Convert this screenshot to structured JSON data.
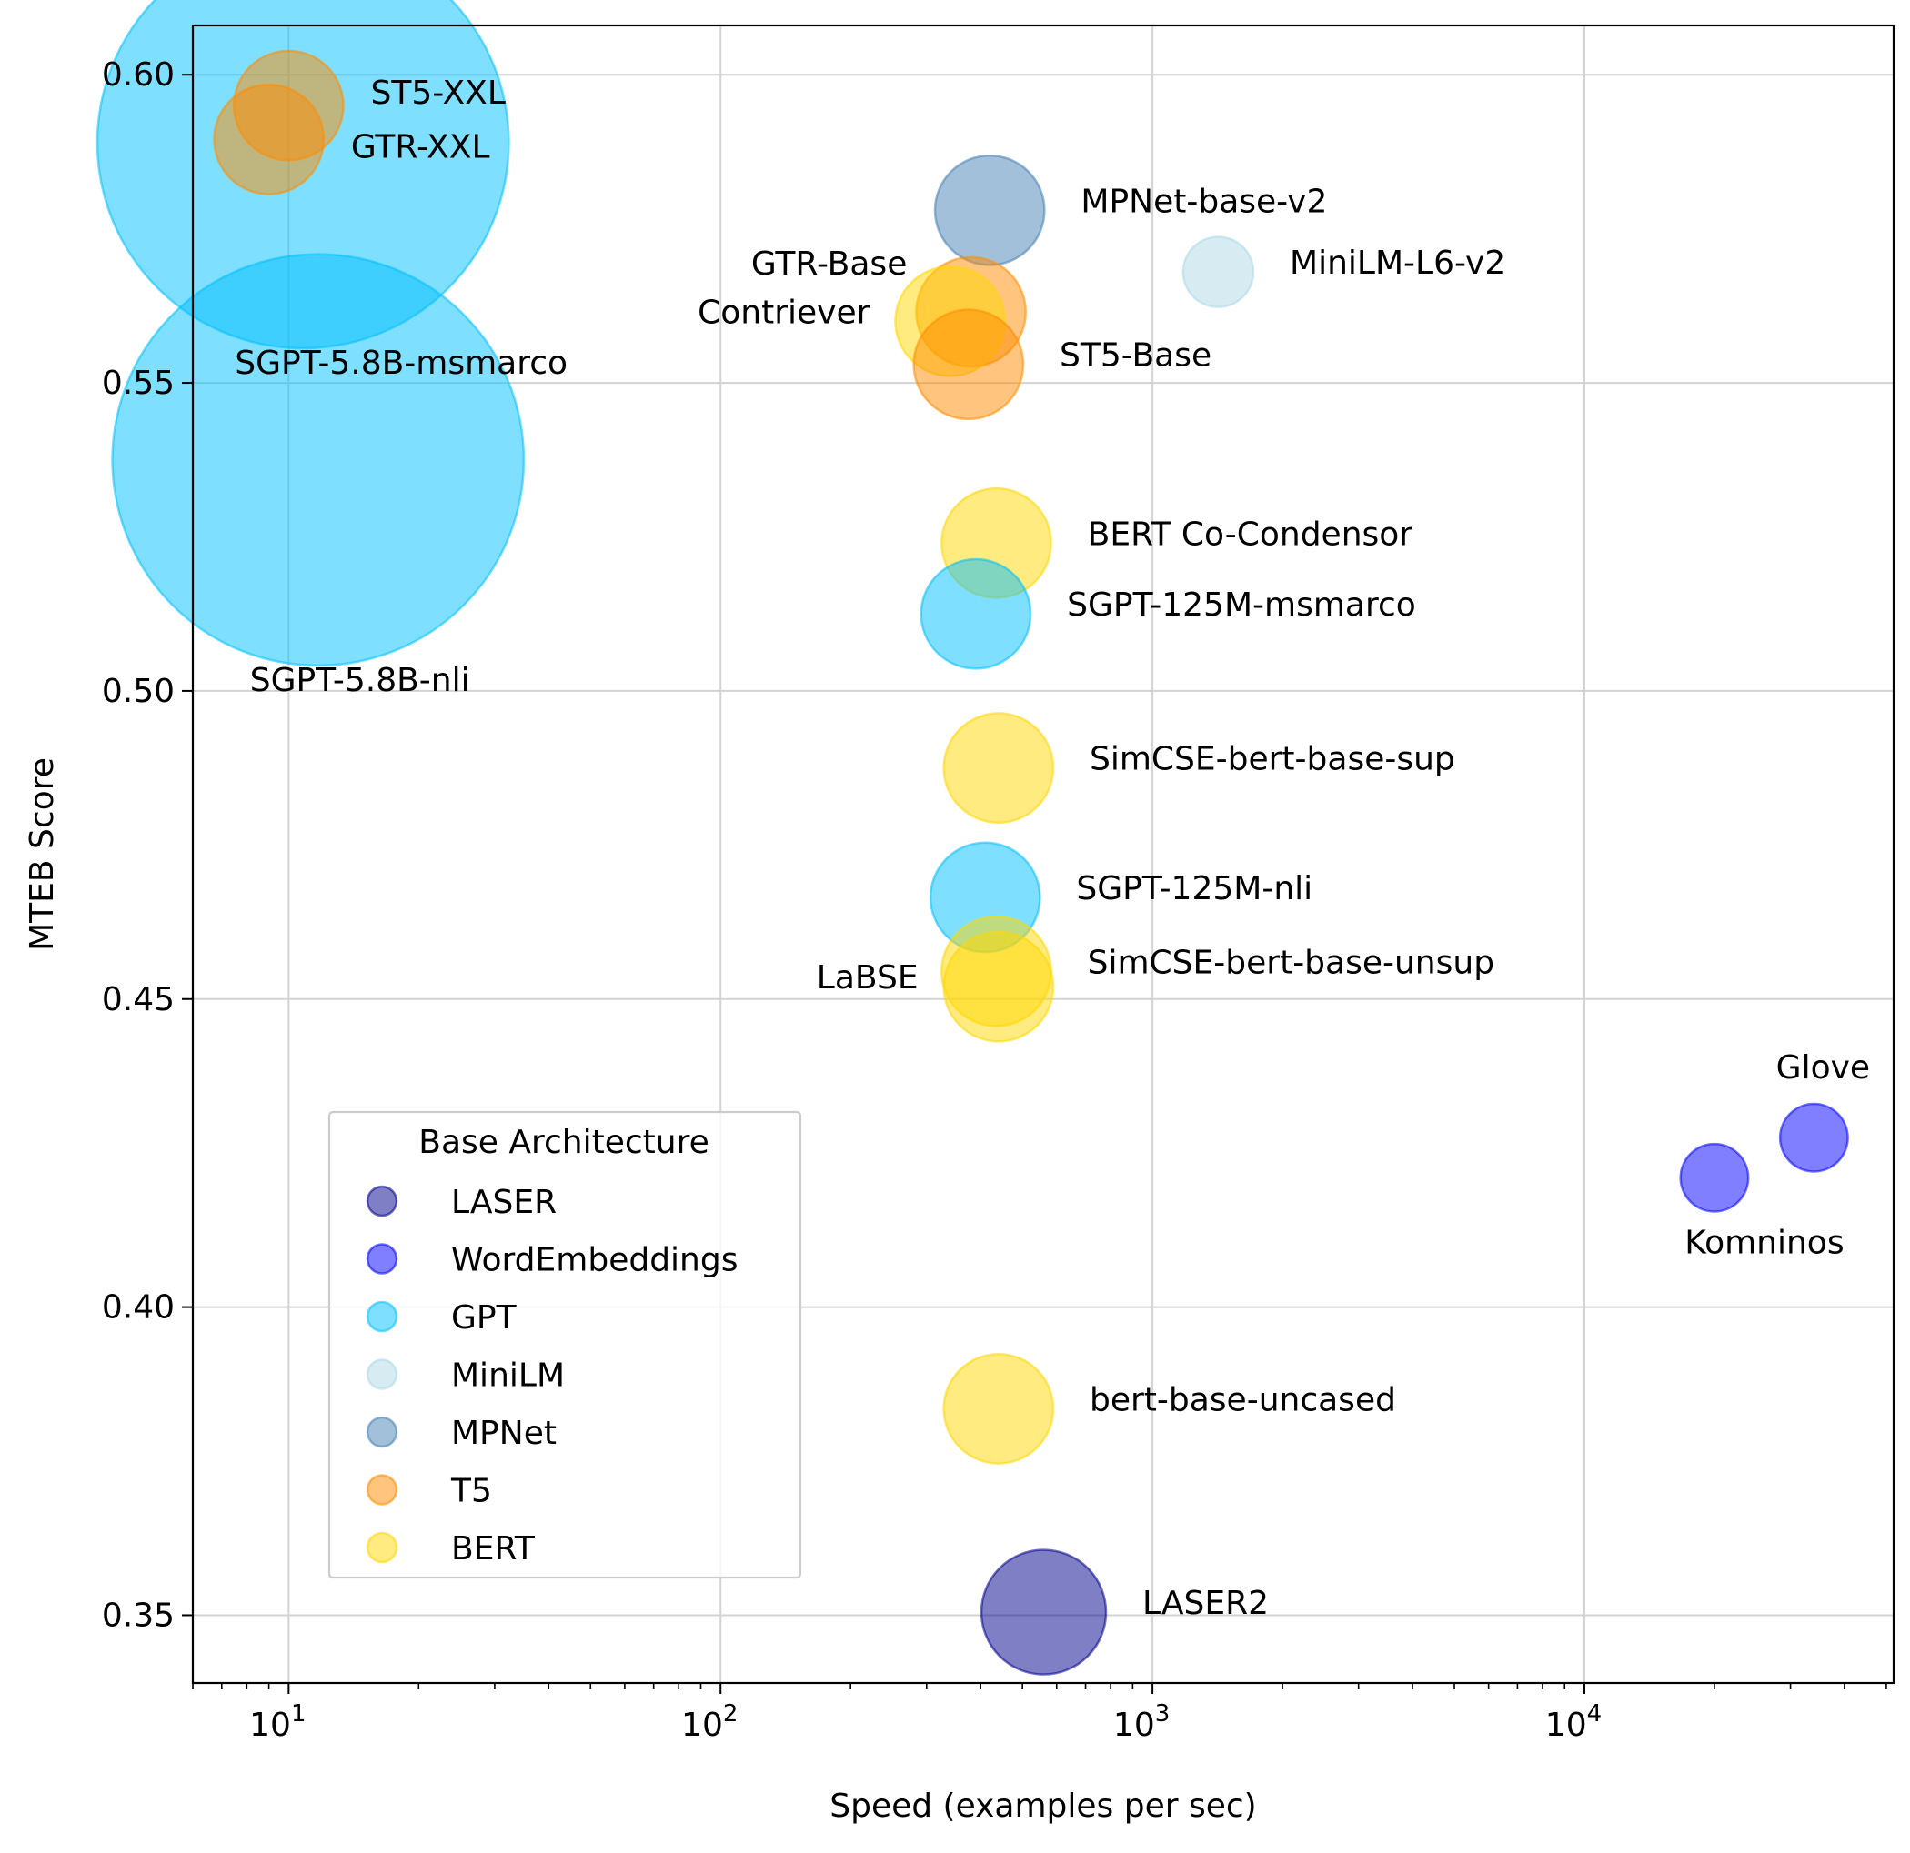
{
  "chart_data": {
    "type": "scatter",
    "xlabel": "Speed (examples per sec)",
    "ylabel": "MTEB Score",
    "xscale": "log",
    "xlim": [
      6,
      52000
    ],
    "ylim": [
      0.339,
      0.608
    ],
    "xticks": [
      {
        "value": 10,
        "label": "10",
        "exp": "1"
      },
      {
        "value": 100,
        "label": "10",
        "exp": "2"
      },
      {
        "value": 1000,
        "label": "10",
        "exp": "3"
      },
      {
        "value": 10000,
        "label": "10",
        "exp": "4"
      }
    ],
    "yticks": [
      {
        "value": 0.35,
        "label": "0.35"
      },
      {
        "value": 0.4,
        "label": "0.40"
      },
      {
        "value": 0.45,
        "label": "0.45"
      },
      {
        "value": 0.5,
        "label": "0.50"
      },
      {
        "value": 0.55,
        "label": "0.55"
      },
      {
        "value": 0.6,
        "label": "0.60"
      }
    ],
    "grid": true,
    "legend": {
      "title": "Base Architecture",
      "position": "lower-left",
      "entries": [
        "LASER",
        "WordEmbeddings",
        "GPT",
        "MiniLM",
        "MPNet",
        "T5",
        "BERT"
      ]
    },
    "colors": {
      "LASER": "#00008b",
      "WordEmbeddings": "#0000ff",
      "GPT": "#00bfff",
      "MiniLM": "#add8e6",
      "MPNet": "#4682b4",
      "T5": "#ff8c00",
      "BERT": "#ffd700"
    },
    "points": [
      {
        "name": "SGPT-5.8B-msmarco",
        "arch": "GPT",
        "x": 10.8,
        "y": 0.589,
        "size": 24000,
        "label_pos": "below-right"
      },
      {
        "name": "ST5-XXL",
        "arch": "T5",
        "x": 10.0,
        "y": 0.595,
        "size": 1700,
        "label_pos": "right-above"
      },
      {
        "name": "GTR-XXL",
        "arch": "T5",
        "x": 9.0,
        "y": 0.5895,
        "size": 1700,
        "label_pos": "right-below"
      },
      {
        "name": "SGPT-5.8B-nli",
        "arch": "GPT",
        "x": 11.7,
        "y": 0.5375,
        "size": 24000,
        "label_pos": "below-right"
      },
      {
        "name": "MPNet-base-v2",
        "arch": "MPNet",
        "x": 420,
        "y": 0.578,
        "size": 1700,
        "label_pos": "right"
      },
      {
        "name": "MiniLM-L6-v2",
        "arch": "MiniLM",
        "x": 1420,
        "y": 0.568,
        "size": 700,
        "label_pos": "right"
      },
      {
        "name": "GTR-Base",
        "arch": "T5",
        "x": 380,
        "y": 0.5615,
        "size": 1700,
        "label_pos": "left-above"
      },
      {
        "name": "Contriever",
        "arch": "BERT",
        "x": 340,
        "y": 0.56,
        "size": 1700,
        "label_pos": "left"
      },
      {
        "name": "ST5-Base",
        "arch": "T5",
        "x": 375,
        "y": 0.553,
        "size": 1700,
        "label_pos": "right"
      },
      {
        "name": "BERT Co-Condensor",
        "arch": "BERT",
        "x": 435,
        "y": 0.524,
        "size": 1700,
        "label_pos": "right"
      },
      {
        "name": "SGPT-125M-msmarco",
        "arch": "GPT",
        "x": 390,
        "y": 0.5125,
        "size": 1700,
        "label_pos": "right"
      },
      {
        "name": "SimCSE-bert-base-sup",
        "arch": "BERT",
        "x": 440,
        "y": 0.4875,
        "size": 1700,
        "label_pos": "right"
      },
      {
        "name": "SGPT-125M-nli",
        "arch": "GPT",
        "x": 410,
        "y": 0.4665,
        "size": 1700,
        "label_pos": "right"
      },
      {
        "name": "SimCSE-bert-base-unsup",
        "arch": "BERT",
        "x": 435,
        "y": 0.4545,
        "size": 1700,
        "label_pos": "right"
      },
      {
        "name": "LaBSE",
        "arch": "BERT",
        "x": 440,
        "y": 0.452,
        "size": 1700,
        "label_pos": "left"
      },
      {
        "name": "bert-base-uncased",
        "arch": "BERT",
        "x": 440,
        "y": 0.3835,
        "size": 1700,
        "label_pos": "right"
      },
      {
        "name": "LASER2",
        "arch": "LASER",
        "x": 560,
        "y": 0.3505,
        "size": 2200,
        "label_pos": "right"
      },
      {
        "name": "Glove",
        "arch": "WordEmbeddings",
        "x": 34000,
        "y": 0.4275,
        "size": 650,
        "label_pos": "above"
      },
      {
        "name": "Komninos",
        "arch": "WordEmbeddings",
        "x": 20000,
        "y": 0.421,
        "size": 650,
        "label_pos": "below"
      }
    ]
  }
}
